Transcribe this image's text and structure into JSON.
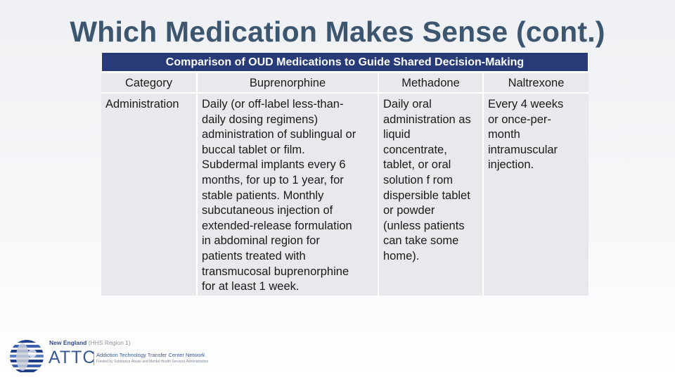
{
  "slide": {
    "title": "Which Medication Makes Sense (cont.)"
  },
  "table": {
    "caption": "Comparison of OUD Medications to Guide Shared Decision-Making",
    "headers": [
      "Category",
      "Buprenorphine",
      "Methadone",
      "Naltrexone"
    ],
    "rows": [
      {
        "category": "Administration",
        "buprenorphine": [
          "Daily (or off-label less-than-",
          "daily dosing regimens)",
          "administration of sublingual or",
          "buccal tablet or film.",
          "Subdermal implants every 6",
          "months, for up to 1 year, for",
          "stable patients. Monthly",
          "subcutaneous injection of",
          "extended-release formulation",
          "in abdominal region for",
          "patients treated with",
          "transmucosal buprenorphine",
          "for at least 1 week."
        ],
        "methadone": [
          "Daily oral",
          "administration as",
          "liquid",
          "concentrate,",
          "tablet, or oral",
          "solution f rom",
          "dispersible tablet",
          "or powder",
          "(unless patients",
          "can take some",
          "home)."
        ],
        "naltrexone": [
          "Every 4 weeks",
          "or once-per-",
          "month",
          "intramuscular",
          "injection."
        ]
      }
    ]
  },
  "logo": {
    "line1": "New England",
    "region": "(HHS Region 1)",
    "brand": "ATTC",
    "sub1": "Addiction Technology Transfer Center Network",
    "sub2": "Funded by Substance Abuse and Mental Health Services Administration"
  },
  "colors": {
    "title": "#3d5670",
    "caption_bg": "#263b78",
    "cell_bg": "#e8e9ec"
  }
}
